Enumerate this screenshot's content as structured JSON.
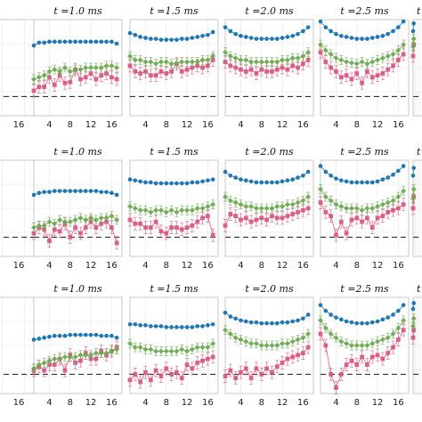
{
  "chart_data": {
    "type": "scatter",
    "layout": {
      "rows": 3,
      "columns": 6,
      "cropped_columns": "first and last partially visible"
    },
    "column_titles": [
      "",
      "t =1.0 ms",
      "t =1.5 ms",
      "t =2.0 ms",
      "t =2.5 ms",
      "t"
    ],
    "x_ticks": [
      4,
      8,
      12,
      16
    ],
    "x_ticks_left_crop": [
      "16"
    ],
    "x_range": [
      1,
      18
    ],
    "y_range": [
      0.0,
      1.0
    ],
    "grid": true,
    "reference_line": {
      "style": "dashed",
      "value": 0.2,
      "color": "#333333"
    },
    "series_colors": {
      "blue": "#1f77b4",
      "green": "#6aa84f",
      "pink": "#d6557f"
    },
    "series_markers": {
      "blue": "circle",
      "green": "diamond",
      "pink": "square"
    },
    "panels": [
      {
        "row": 0,
        "col": 0,
        "x": [
          1,
          2,
          3,
          4,
          5,
          6
        ],
        "blue": [
          0.75,
          0.75,
          0.76,
          0.76,
          0.76,
          0.75
        ],
        "green": [
          0.45,
          0.45,
          0.46,
          0.46,
          0.46,
          0.45
        ],
        "pink": [
          0.32,
          0.33,
          0.34,
          0.33,
          0.35,
          0.33
        ]
      },
      {
        "row": 0,
        "col": 1,
        "x": [
          1,
          2,
          3,
          4,
          5,
          6,
          7,
          8,
          9,
          10,
          11,
          12,
          13,
          14,
          15,
          16,
          17
        ],
        "blue": [
          0.73,
          0.76,
          0.76,
          0.77,
          0.77,
          0.77,
          0.77,
          0.77,
          0.77,
          0.77,
          0.77,
          0.77,
          0.77,
          0.77,
          0.77,
          0.77,
          0.75
        ],
        "green": [
          0.38,
          0.4,
          0.42,
          0.46,
          0.48,
          0.46,
          0.5,
          0.46,
          0.48,
          0.48,
          0.5,
          0.5,
          0.5,
          0.5,
          0.52,
          0.52,
          0.5
        ],
        "pink": [
          0.26,
          0.3,
          0.3,
          0.4,
          0.32,
          0.42,
          0.34,
          0.35,
          0.48,
          0.38,
          0.4,
          0.44,
          0.38,
          0.42,
          0.44,
          0.4,
          0.38
        ]
      },
      {
        "row": 0,
        "col": 2,
        "x": [
          1,
          2,
          3,
          4,
          5,
          6,
          7,
          8,
          9,
          10,
          11,
          12,
          13,
          14,
          15,
          16,
          17
        ],
        "blue": [
          0.86,
          0.84,
          0.82,
          0.81,
          0.8,
          0.8,
          0.79,
          0.79,
          0.79,
          0.79,
          0.8,
          0.8,
          0.81,
          0.82,
          0.83,
          0.84,
          0.87
        ],
        "green": [
          0.62,
          0.58,
          0.58,
          0.56,
          0.56,
          0.54,
          0.56,
          0.56,
          0.54,
          0.54,
          0.56,
          0.56,
          0.56,
          0.56,
          0.58,
          0.58,
          0.62
        ],
        "pink": [
          0.52,
          0.46,
          0.44,
          0.46,
          0.42,
          0.42,
          0.46,
          0.44,
          0.46,
          0.54,
          0.46,
          0.48,
          0.5,
          0.52,
          0.5,
          0.52,
          0.58
        ]
      },
      {
        "row": 0,
        "col": 3,
        "x": [
          1,
          2,
          3,
          4,
          5,
          6,
          7,
          8,
          9,
          10,
          11,
          12,
          13,
          14,
          15,
          16,
          17
        ],
        "blue": [
          0.92,
          0.88,
          0.85,
          0.83,
          0.82,
          0.81,
          0.8,
          0.8,
          0.8,
          0.8,
          0.8,
          0.81,
          0.82,
          0.83,
          0.85,
          0.88,
          0.92
        ],
        "green": [
          0.66,
          0.62,
          0.6,
          0.58,
          0.58,
          0.56,
          0.56,
          0.56,
          0.56,
          0.56,
          0.56,
          0.58,
          0.58,
          0.6,
          0.6,
          0.62,
          0.66
        ],
        "pink": [
          0.56,
          0.52,
          0.5,
          0.48,
          0.46,
          0.48,
          0.44,
          0.48,
          0.46,
          0.46,
          0.48,
          0.5,
          0.48,
          0.52,
          0.5,
          0.54,
          0.58
        ]
      },
      {
        "row": 0,
        "col": 4,
        "x": [
          1,
          2,
          3,
          4,
          5,
          6,
          7,
          8,
          9,
          10,
          11,
          12,
          13,
          14,
          15,
          16,
          17
        ],
        "blue": [
          0.98,
          0.92,
          0.88,
          0.85,
          0.83,
          0.82,
          0.81,
          0.8,
          0.8,
          0.8,
          0.81,
          0.82,
          0.83,
          0.85,
          0.88,
          0.92,
          0.98
        ],
        "green": [
          0.74,
          0.68,
          0.64,
          0.6,
          0.58,
          0.56,
          0.55,
          0.54,
          0.56,
          0.54,
          0.56,
          0.58,
          0.6,
          0.62,
          0.64,
          0.68,
          0.74
        ],
        "pink": [
          0.66,
          0.56,
          0.5,
          0.46,
          0.4,
          0.42,
          0.38,
          0.44,
          0.34,
          0.46,
          0.4,
          0.42,
          0.44,
          0.48,
          0.52,
          0.58,
          0.64
        ]
      },
      {
        "row": 0,
        "col": 5,
        "x": [
          1,
          2
        ],
        "blue": [
          0.88,
          0.96
        ],
        "green": [
          0.72,
          0.8
        ],
        "pink": [
          0.62,
          0.74
        ]
      },
      {
        "row": 1,
        "col": 0,
        "x": [
          1,
          2,
          3,
          4,
          5,
          6
        ],
        "blue": [
          0.66,
          0.66,
          0.66,
          0.66,
          0.66,
          0.66
        ],
        "green": [
          0.3,
          0.31,
          0.3,
          0.31,
          0.3,
          0.3
        ],
        "pink": [
          0.26,
          0.27,
          0.26,
          0.27,
          0.26,
          0.26
        ]
      },
      {
        "row": 1,
        "col": 1,
        "x": [
          1,
          2,
          3,
          4,
          5,
          6,
          7,
          8,
          9,
          10,
          11,
          12,
          13,
          14,
          15,
          16,
          17
        ],
        "blue": [
          0.64,
          0.66,
          0.67,
          0.67,
          0.68,
          0.68,
          0.68,
          0.68,
          0.68,
          0.68,
          0.68,
          0.68,
          0.68,
          0.67,
          0.67,
          0.66,
          0.64
        ],
        "green": [
          0.3,
          0.32,
          0.32,
          0.36,
          0.34,
          0.38,
          0.36,
          0.36,
          0.38,
          0.4,
          0.38,
          0.4,
          0.38,
          0.4,
          0.4,
          0.42,
          0.38
        ],
        "pink": [
          0.24,
          0.3,
          0.28,
          0.16,
          0.28,
          0.26,
          0.34,
          0.2,
          0.3,
          0.24,
          0.3,
          0.36,
          0.3,
          0.34,
          0.36,
          0.3,
          0.14
        ]
      },
      {
        "row": 1,
        "col": 2,
        "x": [
          1,
          2,
          3,
          4,
          5,
          6,
          7,
          8,
          9,
          10,
          11,
          12,
          13,
          14,
          15,
          16,
          17
        ],
        "blue": [
          0.8,
          0.79,
          0.78,
          0.77,
          0.77,
          0.76,
          0.76,
          0.76,
          0.76,
          0.76,
          0.76,
          0.76,
          0.77,
          0.77,
          0.78,
          0.79,
          0.8
        ],
        "green": [
          0.52,
          0.5,
          0.48,
          0.48,
          0.46,
          0.48,
          0.48,
          0.46,
          0.48,
          0.46,
          0.48,
          0.48,
          0.48,
          0.5,
          0.5,
          0.52,
          0.54
        ],
        "pink": [
          0.38,
          0.34,
          0.34,
          0.3,
          0.3,
          0.36,
          0.26,
          0.24,
          0.3,
          0.3,
          0.28,
          0.3,
          0.32,
          0.36,
          0.4,
          0.42,
          0.22
        ]
      },
      {
        "row": 1,
        "col": 3,
        "x": [
          1,
          2,
          3,
          4,
          5,
          6,
          7,
          8,
          9,
          10,
          11,
          12,
          13,
          14,
          15,
          16,
          17
        ],
        "blue": [
          0.88,
          0.84,
          0.82,
          0.8,
          0.79,
          0.78,
          0.77,
          0.77,
          0.77,
          0.77,
          0.77,
          0.78,
          0.79,
          0.8,
          0.82,
          0.84,
          0.88
        ],
        "green": [
          0.62,
          0.58,
          0.56,
          0.54,
          0.52,
          0.52,
          0.5,
          0.5,
          0.5,
          0.5,
          0.52,
          0.52,
          0.54,
          0.54,
          0.56,
          0.58,
          0.62
        ],
        "pink": [
          0.32,
          0.44,
          0.42,
          0.38,
          0.4,
          0.36,
          0.38,
          0.4,
          0.38,
          0.42,
          0.4,
          0.4,
          0.42,
          0.44,
          0.46,
          0.48,
          0.5
        ]
      },
      {
        "row": 1,
        "col": 4,
        "x": [
          1,
          2,
          3,
          4,
          5,
          6,
          7,
          8,
          9,
          10,
          11,
          12,
          13,
          14,
          15,
          16,
          17
        ],
        "blue": [
          0.94,
          0.88,
          0.84,
          0.81,
          0.79,
          0.78,
          0.77,
          0.77,
          0.77,
          0.77,
          0.77,
          0.78,
          0.8,
          0.82,
          0.85,
          0.89,
          0.94
        ],
        "green": [
          0.7,
          0.62,
          0.58,
          0.54,
          0.52,
          0.5,
          0.5,
          0.5,
          0.48,
          0.5,
          0.5,
          0.52,
          0.54,
          0.56,
          0.58,
          0.62,
          0.68
        ],
        "pink": [
          0.56,
          0.46,
          0.42,
          0.22,
          0.36,
          0.24,
          0.38,
          0.4,
          0.36,
          0.4,
          0.3,
          0.4,
          0.42,
          0.46,
          0.48,
          0.5,
          0.54
        ]
      },
      {
        "row": 1,
        "col": 5,
        "x": [
          1,
          2
        ],
        "blue": [
          0.84,
          0.92
        ],
        "green": [
          0.6,
          0.7
        ],
        "pink": [
          0.5,
          0.62
        ]
      },
      {
        "row": 2,
        "col": 0,
        "x": [
          1,
          2,
          3,
          4,
          5,
          6
        ],
        "blue": [
          0.52,
          0.52,
          0.53,
          0.53,
          0.52,
          0.52
        ],
        "green": [
          0.3,
          0.3,
          0.31,
          0.31,
          0.3,
          0.3
        ],
        "pink": [
          0.26,
          0.27,
          0.27,
          0.28,
          0.27,
          0.27
        ]
      },
      {
        "row": 2,
        "col": 1,
        "x": [
          1,
          2,
          3,
          4,
          5,
          6,
          7,
          8,
          9,
          10,
          11,
          12,
          13,
          14,
          15,
          16,
          17
        ],
        "blue": [
          0.56,
          0.57,
          0.58,
          0.59,
          0.6,
          0.6,
          0.6,
          0.61,
          0.61,
          0.61,
          0.61,
          0.61,
          0.61,
          0.6,
          0.6,
          0.6,
          0.58
        ],
        "green": [
          0.26,
          0.3,
          0.32,
          0.34,
          0.36,
          0.36,
          0.38,
          0.38,
          0.38,
          0.4,
          0.4,
          0.4,
          0.42,
          0.42,
          0.42,
          0.44,
          0.46
        ],
        "pink": [
          0.24,
          0.28,
          0.24,
          0.3,
          0.3,
          0.36,
          0.24,
          0.4,
          0.32,
          0.34,
          0.42,
          0.36,
          0.36,
          0.44,
          0.4,
          0.44,
          0.48
        ]
      },
      {
        "row": 2,
        "col": 2,
        "x": [
          1,
          2,
          3,
          4,
          5,
          6,
          7,
          8,
          9,
          10,
          11,
          12,
          13,
          14,
          15,
          16,
          17
        ],
        "blue": [
          0.72,
          0.72,
          0.71,
          0.71,
          0.7,
          0.7,
          0.7,
          0.69,
          0.69,
          0.69,
          0.69,
          0.69,
          0.69,
          0.7,
          0.7,
          0.71,
          0.72
        ],
        "green": [
          0.52,
          0.48,
          0.48,
          0.46,
          0.46,
          0.44,
          0.44,
          0.44,
          0.44,
          0.44,
          0.46,
          0.44,
          0.46,
          0.48,
          0.48,
          0.48,
          0.52
        ],
        "pink": [
          0.14,
          0.2,
          0.12,
          0.22,
          0.14,
          0.24,
          0.18,
          0.26,
          0.2,
          0.22,
          0.16,
          0.3,
          0.26,
          0.32,
          0.34,
          0.36,
          0.38
        ]
      },
      {
        "row": 2,
        "col": 3,
        "x": [
          1,
          2,
          3,
          4,
          5,
          6,
          7,
          8,
          9,
          10,
          11,
          12,
          13,
          14,
          15,
          16,
          17
        ],
        "blue": [
          0.84,
          0.8,
          0.78,
          0.76,
          0.75,
          0.74,
          0.74,
          0.73,
          0.73,
          0.73,
          0.73,
          0.74,
          0.74,
          0.75,
          0.76,
          0.78,
          0.82
        ],
        "green": [
          0.66,
          0.62,
          0.58,
          0.56,
          0.54,
          0.52,
          0.52,
          0.5,
          0.5,
          0.5,
          0.5,
          0.52,
          0.52,
          0.54,
          0.56,
          0.58,
          0.62
        ],
        "pink": [
          0.18,
          0.24,
          0.16,
          0.22,
          0.26,
          0.16,
          0.26,
          0.2,
          0.26,
          0.22,
          0.28,
          0.32,
          0.36,
          0.38,
          0.4,
          0.42,
          0.48
        ]
      },
      {
        "row": 2,
        "col": 4,
        "x": [
          1,
          2,
          3,
          4,
          5,
          6,
          7,
          8,
          9,
          10,
          11,
          12,
          13,
          14,
          15,
          16,
          17
        ],
        "blue": [
          0.92,
          0.86,
          0.82,
          0.79,
          0.77,
          0.75,
          0.74,
          0.73,
          0.73,
          0.73,
          0.74,
          0.75,
          0.77,
          0.79,
          0.82,
          0.86,
          0.92
        ],
        "green": [
          0.76,
          0.68,
          0.62,
          0.58,
          0.54,
          0.52,
          0.5,
          0.5,
          0.5,
          0.5,
          0.52,
          0.54,
          0.56,
          0.58,
          0.62,
          0.68,
          0.76
        ],
        "pink": [
          0.62,
          0.5,
          0.2,
          0.06,
          0.2,
          0.3,
          0.34,
          0.3,
          0.38,
          0.3,
          0.38,
          0.4,
          0.36,
          0.42,
          0.48,
          0.56,
          0.66
        ]
      },
      {
        "row": 2,
        "col": 5,
        "x": [
          1,
          2
        ],
        "blue": [
          0.88,
          0.94
        ],
        "green": [
          0.7,
          0.78
        ],
        "pink": [
          0.58,
          0.66
        ]
      }
    ]
  }
}
